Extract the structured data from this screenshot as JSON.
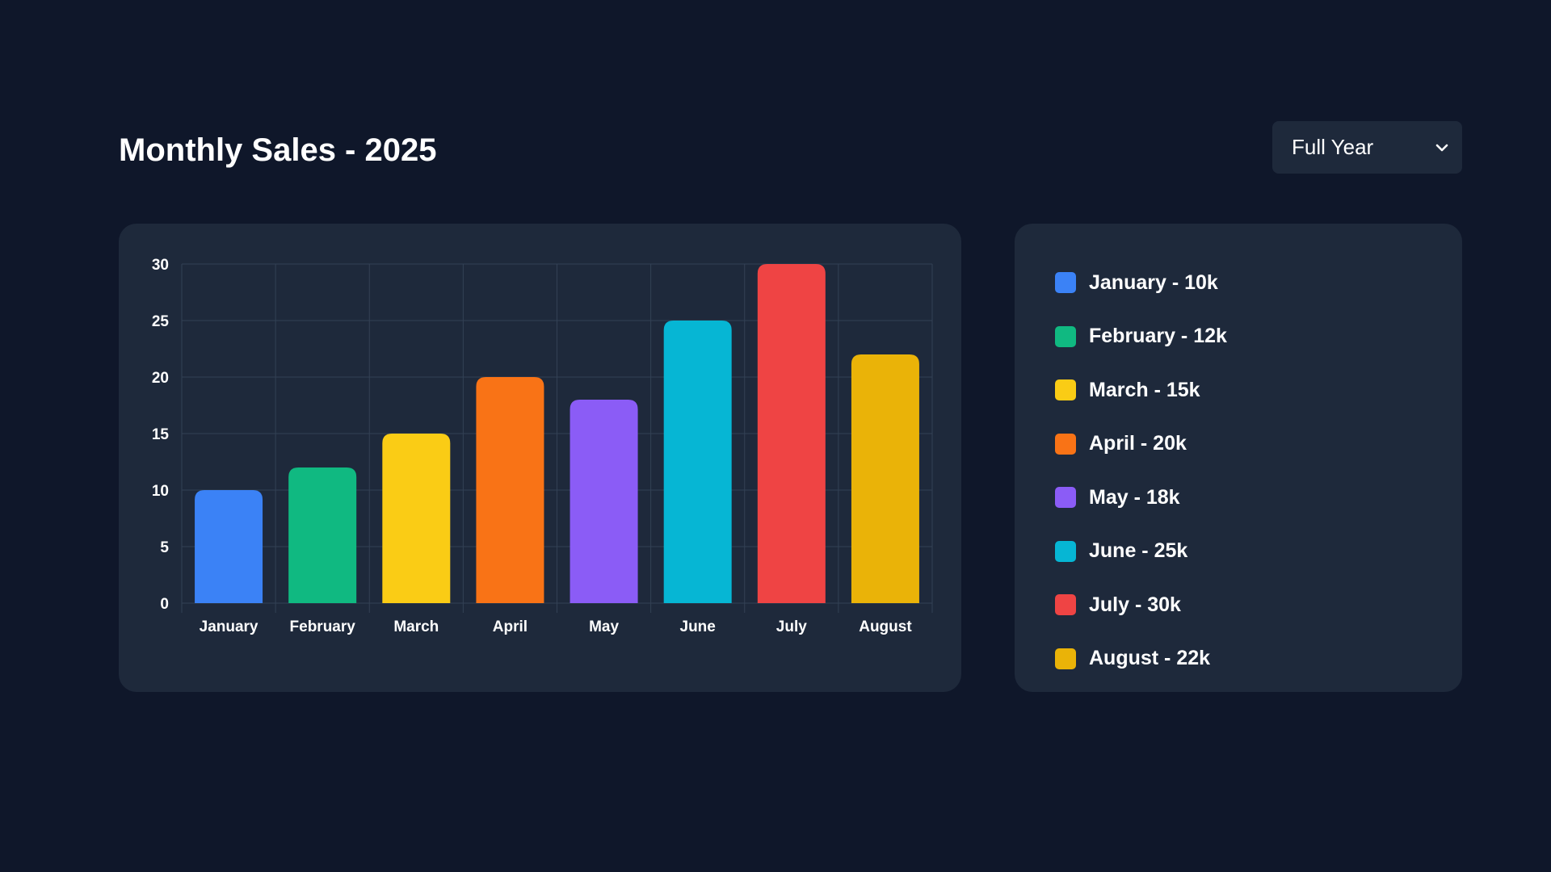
{
  "page": {
    "title": "Monthly Sales - 2025"
  },
  "period_select": {
    "selected": "Full Year",
    "icon": "chevron-down-icon"
  },
  "colors": {
    "background": "#0f172a",
    "card": "#1e293b",
    "grid": "#334155",
    "text": "#ffffff"
  },
  "chart_data": {
    "type": "bar",
    "categories": [
      "January",
      "February",
      "March",
      "April",
      "May",
      "June",
      "July",
      "August"
    ],
    "values": [
      10,
      12,
      15,
      20,
      18,
      25,
      30,
      22
    ],
    "colors": [
      "#3b82f6",
      "#10b981",
      "#facc15",
      "#f97316",
      "#8b5cf6",
      "#06b6d4",
      "#ef4444",
      "#eab308"
    ],
    "yticks": [
      0,
      5,
      10,
      15,
      20,
      25,
      30
    ],
    "ylim": [
      0,
      30
    ],
    "grid": true,
    "legend_position": "right",
    "title": "",
    "xlabel": "",
    "ylabel": ""
  },
  "legend": {
    "items": [
      {
        "label": "January - 10k",
        "color": "#3b82f6"
      },
      {
        "label": "February - 12k",
        "color": "#10b981"
      },
      {
        "label": "March - 15k",
        "color": "#facc15"
      },
      {
        "label": "April - 20k",
        "color": "#f97316"
      },
      {
        "label": "May - 18k",
        "color": "#8b5cf6"
      },
      {
        "label": "June - 25k",
        "color": "#06b6d4"
      },
      {
        "label": "July - 30k",
        "color": "#ef4444"
      },
      {
        "label": "August - 22k",
        "color": "#eab308"
      }
    ]
  }
}
